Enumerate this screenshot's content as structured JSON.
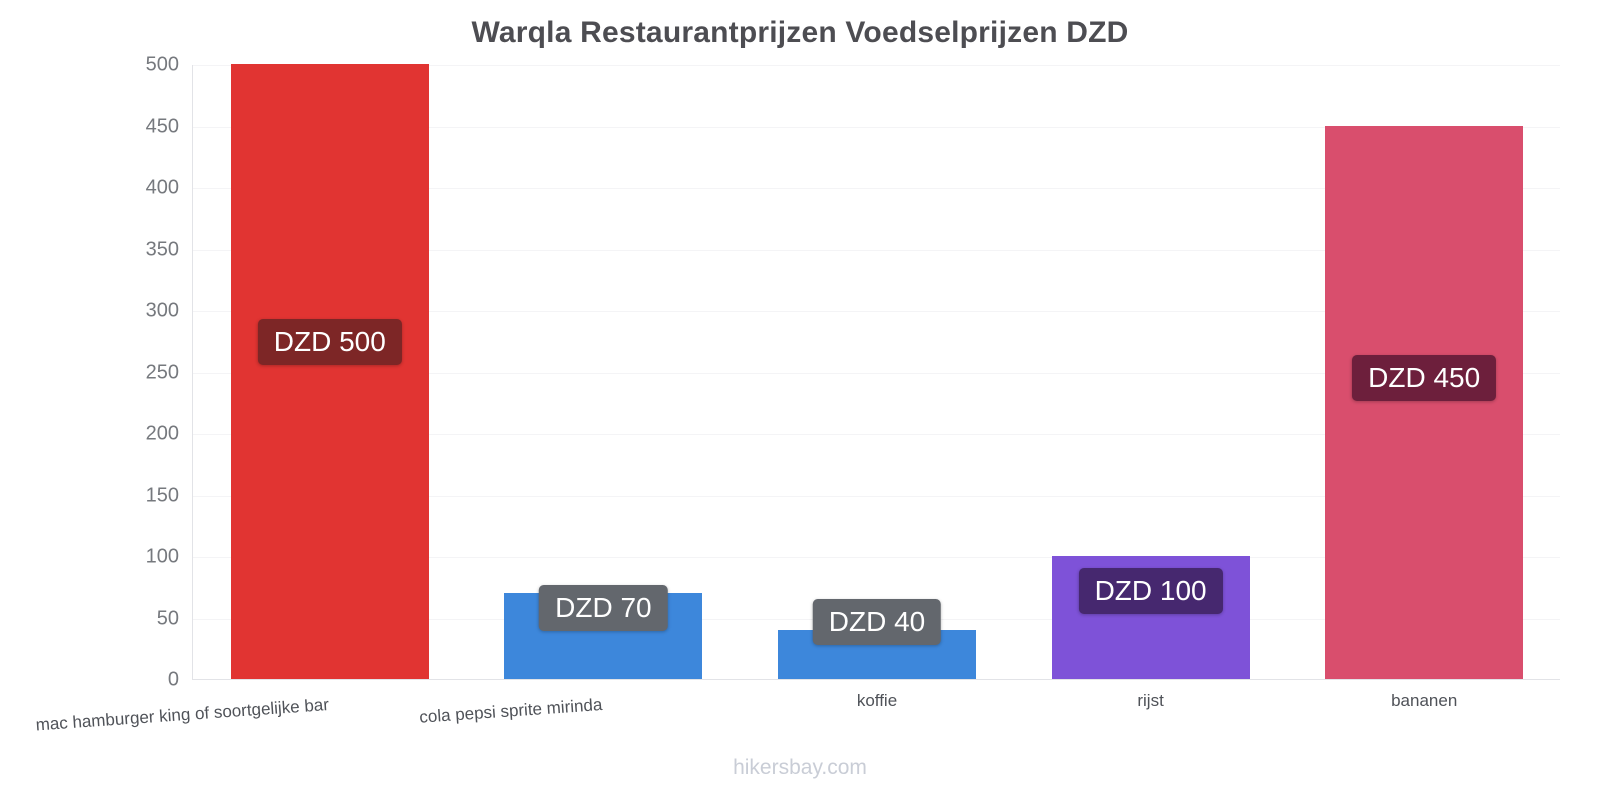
{
  "title": "Warqla Restaurantprijzen Voedselprijzen DZD",
  "watermark": "hikersbay.com",
  "chart_data": {
    "type": "bar",
    "title": "Warqla Restaurantprijzen Voedselprijzen DZD",
    "categories": [
      "mac hamburger king of soortgelijke bar",
      "cola pepsi sprite mirinda",
      "koffie",
      "rijst",
      "bananen"
    ],
    "values": [
      500,
      70,
      40,
      100,
      450
    ],
    "value_labels": [
      "DZD 500",
      "DZD 70",
      "DZD 40",
      "DZD 100",
      "DZD 450"
    ],
    "bar_colors": [
      "#e13432",
      "#3d87db",
      "#3d87db",
      "#7e52d8",
      "#d94e6d"
    ],
    "label_box_colors": [
      "#7d2626",
      "#63676d",
      "#63676d",
      "#46286f",
      "#6d1f3c"
    ],
    "currency": "DZD",
    "xlabel": "",
    "ylabel": "",
    "ylim": [
      0,
      500
    ],
    "yticks": [
      0,
      50,
      100,
      150,
      200,
      250,
      300,
      350,
      400,
      450,
      500
    ],
    "grid": true,
    "legend": false
  }
}
